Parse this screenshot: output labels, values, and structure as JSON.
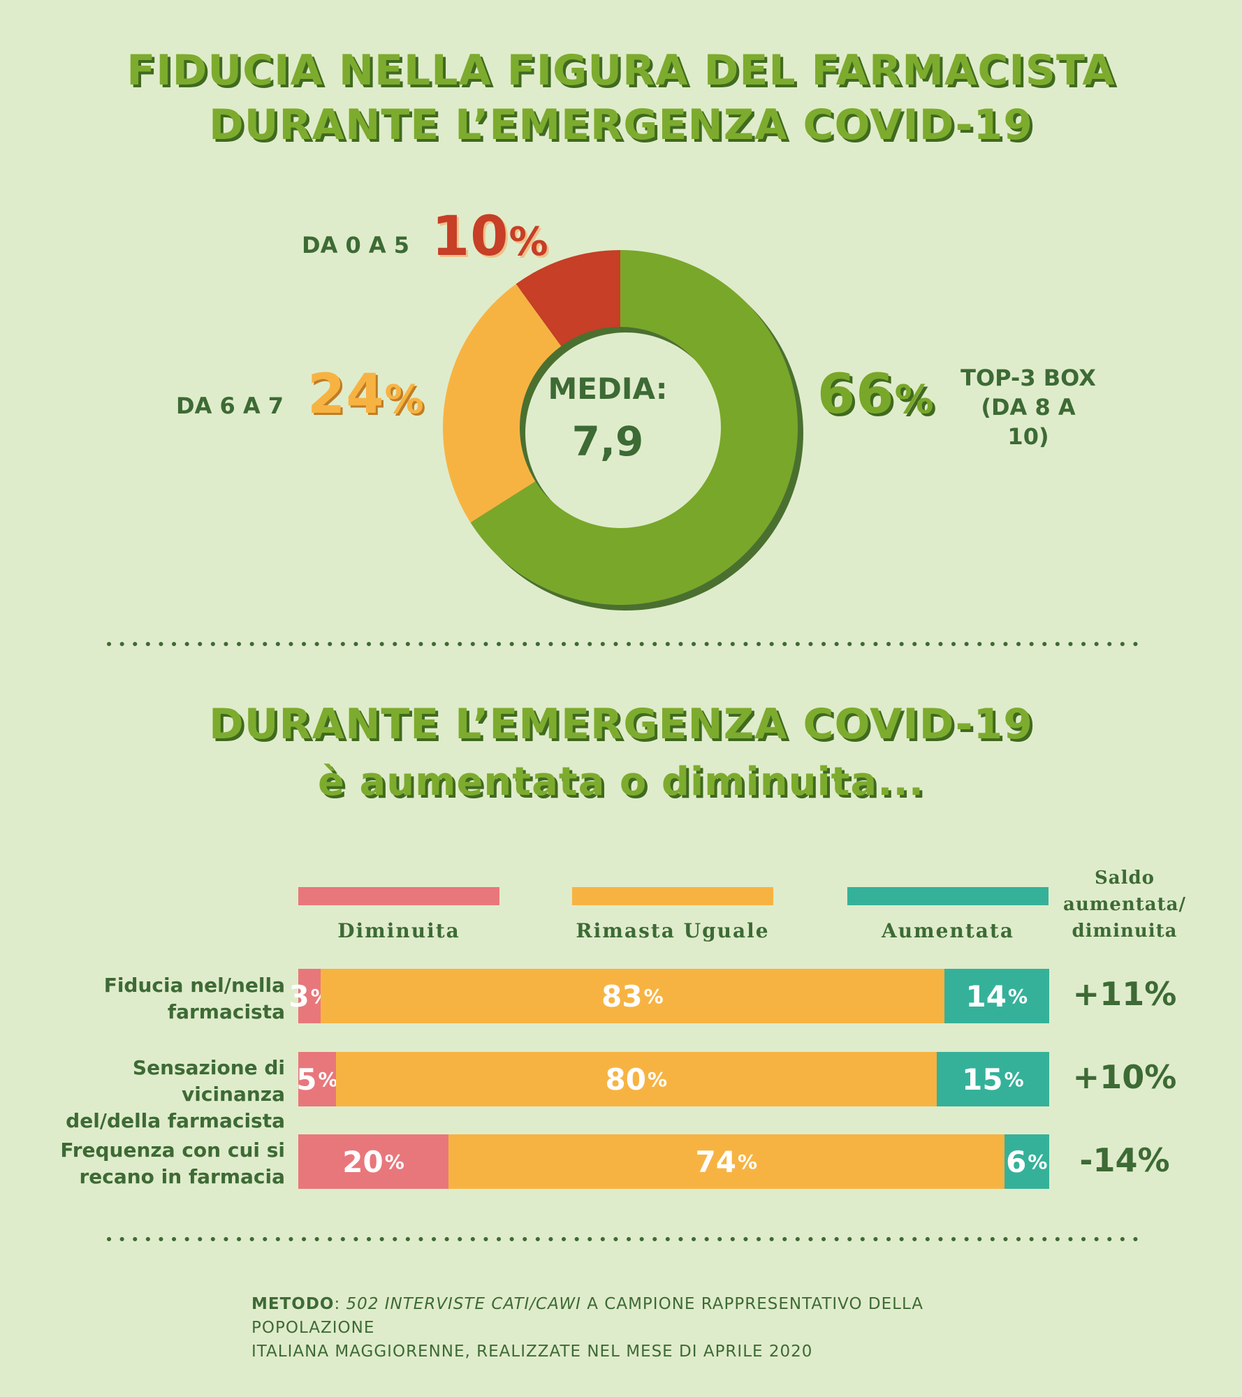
{
  "title_line1": "FIDUCIA NELLA FIGURA DEL FARMACISTA",
  "title_line2": "DURANTE L’EMERGENZA COVID-19",
  "donut": {
    "center_label": "MEDIA:",
    "center_value": "7,9",
    "segments": [
      {
        "label": "DA 0 A 5",
        "value": "10",
        "color": "#c63f26"
      },
      {
        "label": "DA 6 A 7",
        "value": "24",
        "color": "#f7b342"
      },
      {
        "label_line1": "TOP-3 BOX",
        "label_line2": "(DA 8 A 10)",
        "value": "66",
        "color": "#79a72a"
      }
    ],
    "pct_symbol": "%"
  },
  "section2_line1": "DURANTE L’EMERGENZA COVID-19",
  "section2_line2": "è aumentata o diminuita...",
  "legend": {
    "diminuita": "Diminuita",
    "rimasta": "Rimasta Uguale",
    "aumentata": "Aumentata",
    "colors": {
      "diminuita": "#e8777c",
      "rimasta": "#f7b342",
      "aumentata": "#35b19a"
    }
  },
  "saldo_header": [
    "Saldo",
    "aumentata/",
    "diminuita"
  ],
  "chart_data": {
    "type": "bar",
    "stacked": true,
    "orientation": "horizontal",
    "categories": [
      "Fiducia nel/nella farmacista",
      "Sensazione di vicinanza del/della farmacista",
      "Frequenza con cui si recano in farmacia"
    ],
    "series": [
      {
        "name": "Diminuita",
        "values": [
          3,
          5,
          20
        ]
      },
      {
        "name": "Rimasta Uguale",
        "values": [
          83,
          80,
          74
        ]
      },
      {
        "name": "Aumentata",
        "values": [
          14,
          15,
          6
        ]
      }
    ],
    "saldo": [
      "+11%",
      "+10%",
      "-14%"
    ]
  },
  "rows": [
    {
      "label_line1": "Fiducia nel/nella",
      "label_line2": "farmacista",
      "dim": "3",
      "rim": "83",
      "aum": "14",
      "saldo": "+11%"
    },
    {
      "label_line1": "Sensazione di vicinanza",
      "label_line2": "del/della farmacista",
      "dim": "5",
      "rim": "80",
      "aum": "15",
      "saldo": "+10%"
    },
    {
      "label_line1": "Frequenza con cui si",
      "label_line2": "recano in farmacia",
      "dim": "20",
      "rim": "74",
      "aum": "6",
      "saldo": "-14%"
    }
  ],
  "metodo": {
    "bold": "METODO",
    "colon": ": ",
    "italic": "502 INTERVISTE CATI/CAWI",
    "rest1": " A CAMPIONE RAPPRESENTATIVO DELLA POPOLAZIONE",
    "rest2": "ITALIANA MAGGIORENNE, REALIZZATE NEL MESE DI APRILE 2020"
  }
}
